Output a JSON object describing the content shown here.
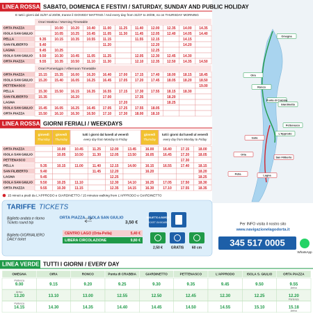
{
  "red_weekend": {
    "badge": "LINEA ROSSA",
    "title": "SABATO, DOMENICA E FESTIVI / SATURDAY, SUNDAY AND PUBLIC HOLIDAY",
    "note": "E tutti i giorni dal 31/07 al 20/08, tranne il GIOVEDI' MATTINO / And every day from 31/07 to 20/08, no on THURSDAY MORNING",
    "morning": {
      "caption": "Orari Mattina / Morning Timetable",
      "rows": [
        {
          "stop": "ORTA PIAZZA",
          "times": [
            null,
            "10.00",
            "10.20",
            "10.40",
            "11.00",
            "11.25",
            "11.40",
            "12.00",
            "12.35",
            "14.00",
            "14.35"
          ]
        },
        {
          "stop": "ISOLA SAN GIULIO",
          "times": [
            null,
            "10.05",
            "10.25",
            "10.45",
            "11.05",
            "11.30",
            "11.45",
            "12.05",
            "12.40",
            "14.05",
            "14.40"
          ]
        },
        {
          "stop": "PELLA",
          "times": [
            "9.35",
            "10.15",
            "10.35",
            "10.55",
            "11.15",
            null,
            "11.55",
            "12.15",
            null,
            "14.15",
            null
          ]
        },
        {
          "stop": "SAN FILIBERTO",
          "times": [
            "9.40",
            null,
            null,
            null,
            "11.20",
            null,
            null,
            "12.20",
            null,
            "14.20",
            null
          ]
        },
        {
          "stop": "LAGNA",
          "times": [
            "9.45",
            "10.25",
            null,
            null,
            null,
            null,
            null,
            "12.25",
            null,
            null,
            null
          ]
        },
        {
          "stop": "ISOLA SAN GIULIO",
          "times": [
            "9.50",
            "10.30",
            "10.45",
            "11.05",
            "11.25",
            null,
            "12.05",
            "12.30",
            "12.45",
            "14.30",
            null
          ]
        },
        {
          "stop": "ORTA PIAZZA",
          "times": [
            "9.55",
            "10.35",
            "10.50",
            "11.10",
            "11.30",
            null,
            "12.10",
            "12.35",
            "12.50",
            "14.35",
            "14.50"
          ]
        }
      ]
    },
    "afternoon": {
      "caption": "Orari Pomeriggio / Afternoon Timetable",
      "rows": [
        {
          "stop": "ORTA PIAZZA",
          "times": [
            "15.15",
            "15.35",
            "16.00",
            "16.20",
            "16.40",
            "17.00",
            "17.15",
            "17.40",
            "18.00",
            "18.15",
            "18.45"
          ]
        },
        {
          "stop": "ISOLA SAN GIULIO",
          "times": [
            "15.20",
            "15.40",
            "16.05",
            "16.25",
            "16.45",
            "17.05",
            "17.20",
            "17.45",
            "18.05",
            "18.20",
            "18.50"
          ]
        },
        {
          "stop": "PETTENASCO",
          "times": [
            null,
            null,
            null,
            null,
            null,
            null,
            null,
            null,
            null,
            null,
            "19.00"
          ]
        },
        {
          "stop": "PELLA",
          "times": [
            "15.30",
            "15.50",
            "16.15",
            "16.35",
            "16.55",
            "17.15",
            "17.30",
            "17.55",
            "18.15",
            "18.30",
            null
          ]
        },
        {
          "stop": "SAN FILIBERTO",
          "times": [
            "15.35",
            null,
            "16.20",
            null,
            "17.00",
            null,
            "17.35",
            null,
            "18.20",
            null,
            null
          ]
        },
        {
          "stop": "LAGNA",
          "times": [
            null,
            null,
            null,
            null,
            null,
            "17.20",
            null,
            null,
            "18.25",
            null,
            null
          ]
        },
        {
          "stop": "ISOLA SAN GIULIO",
          "times": [
            "15.45",
            "16.05",
            "16.25",
            "16.45",
            "17.05",
            "17.25",
            "17.55",
            "18.05",
            null,
            null,
            null
          ]
        },
        {
          "stop": "ORTA PIAZZA",
          "times": [
            "15.50",
            "16.10",
            "16.30",
            "16.50",
            "17.10",
            "17.30",
            "18.00",
            "18.10",
            null,
            null,
            null
          ]
        }
      ]
    }
  },
  "red_weekdays": {
    "badge": "LINEA ROSSA",
    "title": "GIORNI FERIALI / WEEKDAYS",
    "column_headers": [
      {
        "label": "giovedì",
        "sub": "Thursday"
      },
      {
        "label": "giovedì",
        "sub": "Thursday"
      },
      {
        "label": "tutti i giorni dal lunedì al venerdì",
        "sub": "every day from Monday to Friday"
      },
      {
        "label": "giovedì",
        "sub": "Thursday"
      },
      {
        "label": "tutti i giorni dal lunedì al venerdì",
        "sub": "every day from Monday to Friday"
      }
    ],
    "rows": [
      {
        "stop": "ORTA PIAZZA",
        "times": [
          null,
          "10.00",
          "10.45",
          "11.25",
          "12.00",
          "13.45",
          "16.00",
          "16.40",
          "17.15",
          "18.00"
        ]
      },
      {
        "stop": "ISOLA SAN GIULIO",
        "times": [
          null,
          "10.05",
          "10.50",
          "11.30",
          "12.05",
          "13.50",
          "16.05",
          "16.45",
          "17.20",
          "18.05"
        ]
      },
      {
        "stop": "PETTENASCO",
        "times": [
          null,
          null,
          null,
          null,
          null,
          null,
          null,
          null,
          "17.30",
          null
        ]
      },
      {
        "stop": "PELLA",
        "times": [
          "9.35",
          "10.15",
          "11.00",
          "11.40",
          "12.15",
          "14.00",
          "16.15",
          "16.55",
          "17.40",
          "18.15"
        ]
      },
      {
        "stop": "SAN FILIBERTO",
        "times": [
          "9.40",
          null,
          null,
          "11.45",
          "12.20",
          null,
          "16.20",
          null,
          null,
          "18.20"
        ]
      },
      {
        "stop": "LAGNA",
        "times": [
          "9.45",
          null,
          null,
          null,
          "12.25",
          null,
          null,
          null,
          null,
          "18.25"
        ]
      },
      {
        "stop": "ISOLA SAN GIULIO",
        "times": [
          "9.50",
          "10.25",
          "11.10",
          null,
          "12.30",
          "14.10",
          "16.25",
          "17.05",
          "17.50",
          "18.30"
        ]
      },
      {
        "stop": "ORTA PIAZZA",
        "times": [
          "9.55",
          "10.30",
          "11.15",
          null,
          "12.35",
          "14.15",
          "16.30",
          "17.10",
          "17.55",
          "18.35"
        ]
      }
    ],
    "footnote": "15 minuti a piedi da L'APPRODO e GIARDINETTO / 15 minutes walking from L'APPRODO e GIARDINETTO"
  },
  "tariffe": {
    "title": "TARIFFE",
    "title_en": "TICKETS",
    "round_trip": {
      "label": "Biglietto andata e ritorno",
      "label_en": "Tickets round trip",
      "route_from": "ORTA PIAZZA",
      "route_to": "ISOLA SAN GIULIO",
      "price": "3,50 €"
    },
    "daily": {
      "label": "Biglietto GIORNALIERO",
      "label_en": "DAILY ticket",
      "options": [
        {
          "name": "CENTRO LAGO (Orta-Pella)",
          "price": "5,40 €"
        },
        {
          "name": "LIBERA CIRCOLAZIONE",
          "price": "9,80 €"
        }
      ]
    },
    "on_board": "BIGLIETTO A BORDO",
    "on_board_en": "TICKET ON BOARD",
    "icons": [
      "2,50 €",
      "GRATIS",
      "60 cm"
    ]
  },
  "contact": {
    "info": "Per INFO visita il nostro sito",
    "url": "www.navigazionelagodorta.it",
    "phone": "345 517 0005",
    "whatsapp": "WhatsApp"
  },
  "map": {
    "labels": [
      "Omegna",
      "Oira",
      "Ronco",
      "Punta di Crabbia",
      "Giardinetto",
      "Pettenasco",
      "L'Approdo",
      "Isola",
      "Orta",
      "Pella",
      "San Filiberto",
      "Lagna"
    ]
  },
  "green": {
    "badge": "LINEA VERDE",
    "title": "TUTTI I GIORNI / EVERY DAY",
    "stops": [
      "OMEGNA",
      "OIRA",
      "RONCO",
      "Punta di CRABBIA",
      "GIARDINETTO",
      "PETTENASCO",
      "L'APPRODO",
      "ISOLA S. GIULIO",
      "ORTA PIAZZA"
    ],
    "rows": [
      {
        "start_note": "Partenza",
        "times": [
          "9.00",
          "9.15",
          "9.20",
          "9.25",
          "9.30",
          "9.35",
          "9.45",
          "9.50",
          "9.55"
        ],
        "end_note": "Arrivo"
      },
      {
        "start_note": "Arrivo",
        "times": [
          "13.20",
          "13.10",
          "13.00",
          "12.55",
          "12.50",
          "12.45",
          "12.30",
          "12.25",
          "12.20"
        ],
        "end_note": "Partenza"
      },
      {
        "start_note": "Partenza",
        "times": [
          "14.15",
          "14.30",
          "14.35",
          "14.40",
          "14.45",
          "14.50",
          "14.55",
          "15.10",
          "15.18"
        ],
        "end_note": "Arrivo"
      }
    ]
  }
}
